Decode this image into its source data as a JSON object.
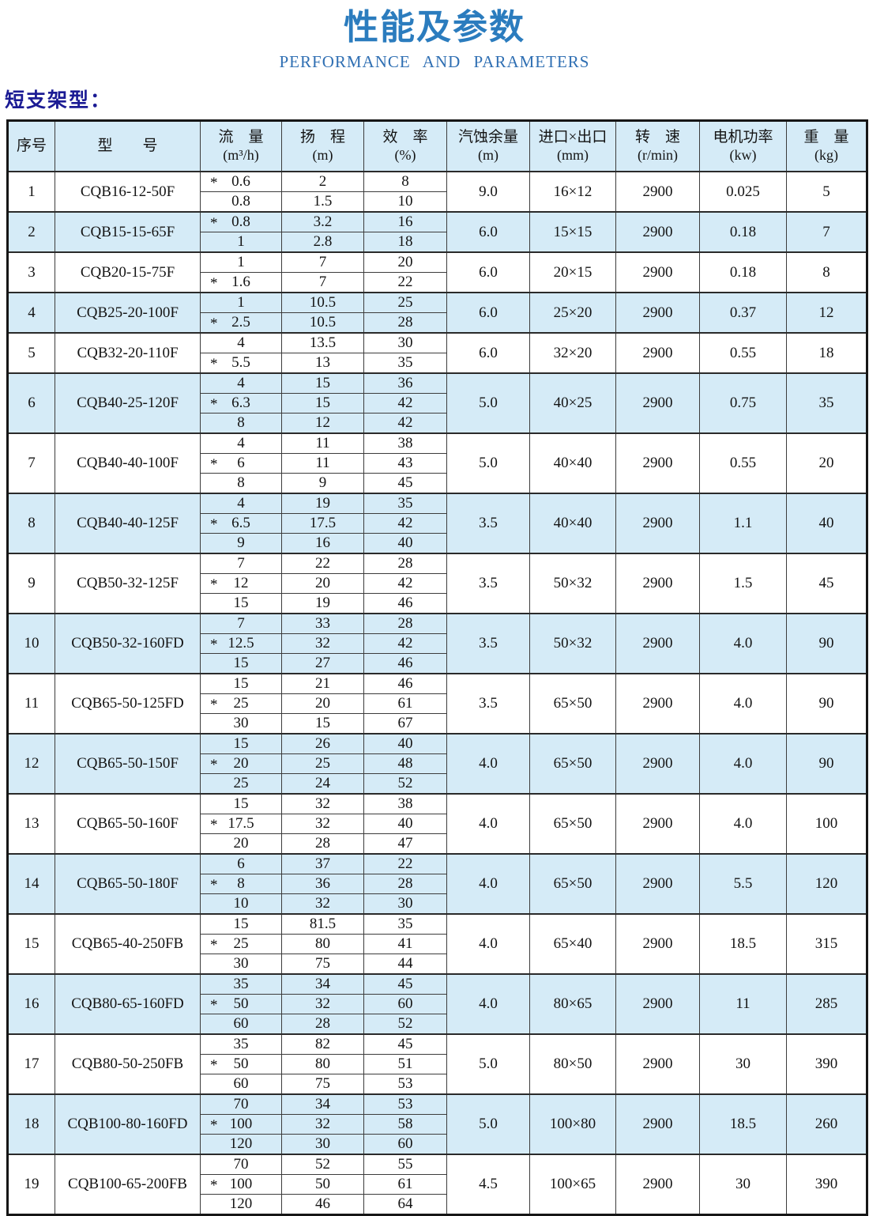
{
  "page": {
    "title": "性能及参数",
    "subtitle": "PERFORMANCE AND PARAMETERS",
    "section_label": "短支架型："
  },
  "colors": {
    "title_blue": "#2b7cbe",
    "subtitle_blue": "#2f6fb3",
    "section_label_navy": "#1b1b94",
    "row_alt_blue": "#d5ebf7",
    "border_dark": "#2a2a2a"
  },
  "table": {
    "headers": [
      {
        "label": "序号",
        "unit": ""
      },
      {
        "label": "型　　号",
        "unit": ""
      },
      {
        "label": "流　量",
        "unit": "(m³/h)"
      },
      {
        "label": "扬　程",
        "unit": "(m)"
      },
      {
        "label": "效　率",
        "unit": "(%)"
      },
      {
        "label": "汽蚀余量",
        "unit": "(m)"
      },
      {
        "label": "进口×出口",
        "unit": "(mm)"
      },
      {
        "label": "转　速",
        "unit": "(r/min)"
      },
      {
        "label": "电机功率",
        "unit": "(kw)"
      },
      {
        "label": "重　量",
        "unit": "(kg)"
      }
    ],
    "rows": [
      {
        "no": "1",
        "model": "CQB16-12-50F",
        "curves": [
          {
            "star": true,
            "flow": "0.6",
            "head": "2",
            "eff": "8"
          },
          {
            "star": false,
            "flow": "0.8",
            "head": "1.5",
            "eff": "10"
          }
        ],
        "npsh": "9.0",
        "ports": "16×12",
        "speed": "2900",
        "power": "0.025",
        "weight": "5"
      },
      {
        "no": "2",
        "model": "CQB15-15-65F",
        "curves": [
          {
            "star": true,
            "flow": "0.8",
            "head": "3.2",
            "eff": "16"
          },
          {
            "star": false,
            "flow": "1",
            "head": "2.8",
            "eff": "18"
          }
        ],
        "npsh": "6.0",
        "ports": "15×15",
        "speed": "2900",
        "power": "0.18",
        "weight": "7"
      },
      {
        "no": "3",
        "model": "CQB20-15-75F",
        "curves": [
          {
            "star": false,
            "flow": "1",
            "head": "7",
            "eff": "20"
          },
          {
            "star": true,
            "flow": "1.6",
            "head": "7",
            "eff": "22"
          }
        ],
        "npsh": "6.0",
        "ports": "20×15",
        "speed": "2900",
        "power": "0.18",
        "weight": "8"
      },
      {
        "no": "4",
        "model": "CQB25-20-100F",
        "curves": [
          {
            "star": false,
            "flow": "1",
            "head": "10.5",
            "eff": "25"
          },
          {
            "star": true,
            "flow": "2.5",
            "head": "10.5",
            "eff": "28"
          }
        ],
        "npsh": "6.0",
        "ports": "25×20",
        "speed": "2900",
        "power": "0.37",
        "weight": "12"
      },
      {
        "no": "5",
        "model": "CQB32-20-110F",
        "curves": [
          {
            "star": false,
            "flow": "4",
            "head": "13.5",
            "eff": "30"
          },
          {
            "star": true,
            "flow": "5.5",
            "head": "13",
            "eff": "35"
          }
        ],
        "npsh": "6.0",
        "ports": "32×20",
        "speed": "2900",
        "power": "0.55",
        "weight": "18"
      },
      {
        "no": "6",
        "model": "CQB40-25-120F",
        "curves": [
          {
            "star": false,
            "flow": "4",
            "head": "15",
            "eff": "36"
          },
          {
            "star": true,
            "flow": "6.3",
            "head": "15",
            "eff": "42"
          },
          {
            "star": false,
            "flow": "8",
            "head": "12",
            "eff": "42"
          }
        ],
        "npsh": "5.0",
        "ports": "40×25",
        "speed": "2900",
        "power": "0.75",
        "weight": "35"
      },
      {
        "no": "7",
        "model": "CQB40-40-100F",
        "curves": [
          {
            "star": false,
            "flow": "4",
            "head": "11",
            "eff": "38"
          },
          {
            "star": true,
            "flow": "6",
            "head": "11",
            "eff": "43"
          },
          {
            "star": false,
            "flow": "8",
            "head": "9",
            "eff": "45"
          }
        ],
        "npsh": "5.0",
        "ports": "40×40",
        "speed": "2900",
        "power": "0.55",
        "weight": "20"
      },
      {
        "no": "8",
        "model": "CQB40-40-125F",
        "curves": [
          {
            "star": false,
            "flow": "4",
            "head": "19",
            "eff": "35"
          },
          {
            "star": true,
            "flow": "6.5",
            "head": "17.5",
            "eff": "42"
          },
          {
            "star": false,
            "flow": "9",
            "head": "16",
            "eff": "40"
          }
        ],
        "npsh": "3.5",
        "ports": "40×40",
        "speed": "2900",
        "power": "1.1",
        "weight": "40"
      },
      {
        "no": "9",
        "model": "CQB50-32-125F",
        "curves": [
          {
            "star": false,
            "flow": "7",
            "head": "22",
            "eff": "28"
          },
          {
            "star": true,
            "flow": "12",
            "head": "20",
            "eff": "42"
          },
          {
            "star": false,
            "flow": "15",
            "head": "19",
            "eff": "46"
          }
        ],
        "npsh": "3.5",
        "ports": "50×32",
        "speed": "2900",
        "power": "1.5",
        "weight": "45"
      },
      {
        "no": "10",
        "model": "CQB50-32-160FD",
        "curves": [
          {
            "star": false,
            "flow": "7",
            "head": "33",
            "eff": "28"
          },
          {
            "star": true,
            "flow": "12.5",
            "head": "32",
            "eff": "42"
          },
          {
            "star": false,
            "flow": "15",
            "head": "27",
            "eff": "46"
          }
        ],
        "npsh": "3.5",
        "ports": "50×32",
        "speed": "2900",
        "power": "4.0",
        "weight": "90"
      },
      {
        "no": "11",
        "model": "CQB65-50-125FD",
        "curves": [
          {
            "star": false,
            "flow": "15",
            "head": "21",
            "eff": "46"
          },
          {
            "star": true,
            "flow": "25",
            "head": "20",
            "eff": "61"
          },
          {
            "star": false,
            "flow": "30",
            "head": "15",
            "eff": "67"
          }
        ],
        "npsh": "3.5",
        "ports": "65×50",
        "speed": "2900",
        "power": "4.0",
        "weight": "90"
      },
      {
        "no": "12",
        "model": "CQB65-50-150F",
        "curves": [
          {
            "star": false,
            "flow": "15",
            "head": "26",
            "eff": "40"
          },
          {
            "star": true,
            "flow": "20",
            "head": "25",
            "eff": "48"
          },
          {
            "star": false,
            "flow": "25",
            "head": "24",
            "eff": "52"
          }
        ],
        "npsh": "4.0",
        "ports": "65×50",
        "speed": "2900",
        "power": "4.0",
        "weight": "90"
      },
      {
        "no": "13",
        "model": "CQB65-50-160F",
        "curves": [
          {
            "star": false,
            "flow": "15",
            "head": "32",
            "eff": "38"
          },
          {
            "star": true,
            "flow": "17.5",
            "head": "32",
            "eff": "40"
          },
          {
            "star": false,
            "flow": "20",
            "head": "28",
            "eff": "47"
          }
        ],
        "npsh": "4.0",
        "ports": "65×50",
        "speed": "2900",
        "power": "4.0",
        "weight": "100"
      },
      {
        "no": "14",
        "model": "CQB65-50-180F",
        "curves": [
          {
            "star": false,
            "flow": "6",
            "head": "37",
            "eff": "22"
          },
          {
            "star": true,
            "flow": "8",
            "head": "36",
            "eff": "28"
          },
          {
            "star": false,
            "flow": "10",
            "head": "32",
            "eff": "30"
          }
        ],
        "npsh": "4.0",
        "ports": "65×50",
        "speed": "2900",
        "power": "5.5",
        "weight": "120"
      },
      {
        "no": "15",
        "model": "CQB65-40-250FB",
        "curves": [
          {
            "star": false,
            "flow": "15",
            "head": "81.5",
            "eff": "35"
          },
          {
            "star": true,
            "flow": "25",
            "head": "80",
            "eff": "41"
          },
          {
            "star": false,
            "flow": "30",
            "head": "75",
            "eff": "44"
          }
        ],
        "npsh": "4.0",
        "ports": "65×40",
        "speed": "2900",
        "power": "18.5",
        "weight": "315"
      },
      {
        "no": "16",
        "model": "CQB80-65-160FD",
        "curves": [
          {
            "star": false,
            "flow": "35",
            "head": "34",
            "eff": "45"
          },
          {
            "star": true,
            "flow": "50",
            "head": "32",
            "eff": "60"
          },
          {
            "star": false,
            "flow": "60",
            "head": "28",
            "eff": "52"
          }
        ],
        "npsh": "4.0",
        "ports": "80×65",
        "speed": "2900",
        "power": "11",
        "weight": "285"
      },
      {
        "no": "17",
        "model": "CQB80-50-250FB",
        "curves": [
          {
            "star": false,
            "flow": "35",
            "head": "82",
            "eff": "45"
          },
          {
            "star": true,
            "flow": "50",
            "head": "80",
            "eff": "51"
          },
          {
            "star": false,
            "flow": "60",
            "head": "75",
            "eff": "53"
          }
        ],
        "npsh": "5.0",
        "ports": "80×50",
        "speed": "2900",
        "power": "30",
        "weight": "390"
      },
      {
        "no": "18",
        "model": "CQB100-80-160FD",
        "curves": [
          {
            "star": false,
            "flow": "70",
            "head": "34",
            "eff": "53"
          },
          {
            "star": true,
            "flow": "100",
            "head": "32",
            "eff": "58"
          },
          {
            "star": false,
            "flow": "120",
            "head": "30",
            "eff": "60"
          }
        ],
        "npsh": "5.0",
        "ports": "100×80",
        "speed": "2900",
        "power": "18.5",
        "weight": "260"
      },
      {
        "no": "19",
        "model": "CQB100-65-200FB",
        "curves": [
          {
            "star": false,
            "flow": "70",
            "head": "52",
            "eff": "55"
          },
          {
            "star": true,
            "flow": "100",
            "head": "50",
            "eff": "61"
          },
          {
            "star": false,
            "flow": "120",
            "head": "46",
            "eff": "64"
          }
        ],
        "npsh": "4.5",
        "ports": "100×65",
        "speed": "2900",
        "power": "30",
        "weight": "390"
      }
    ]
  }
}
